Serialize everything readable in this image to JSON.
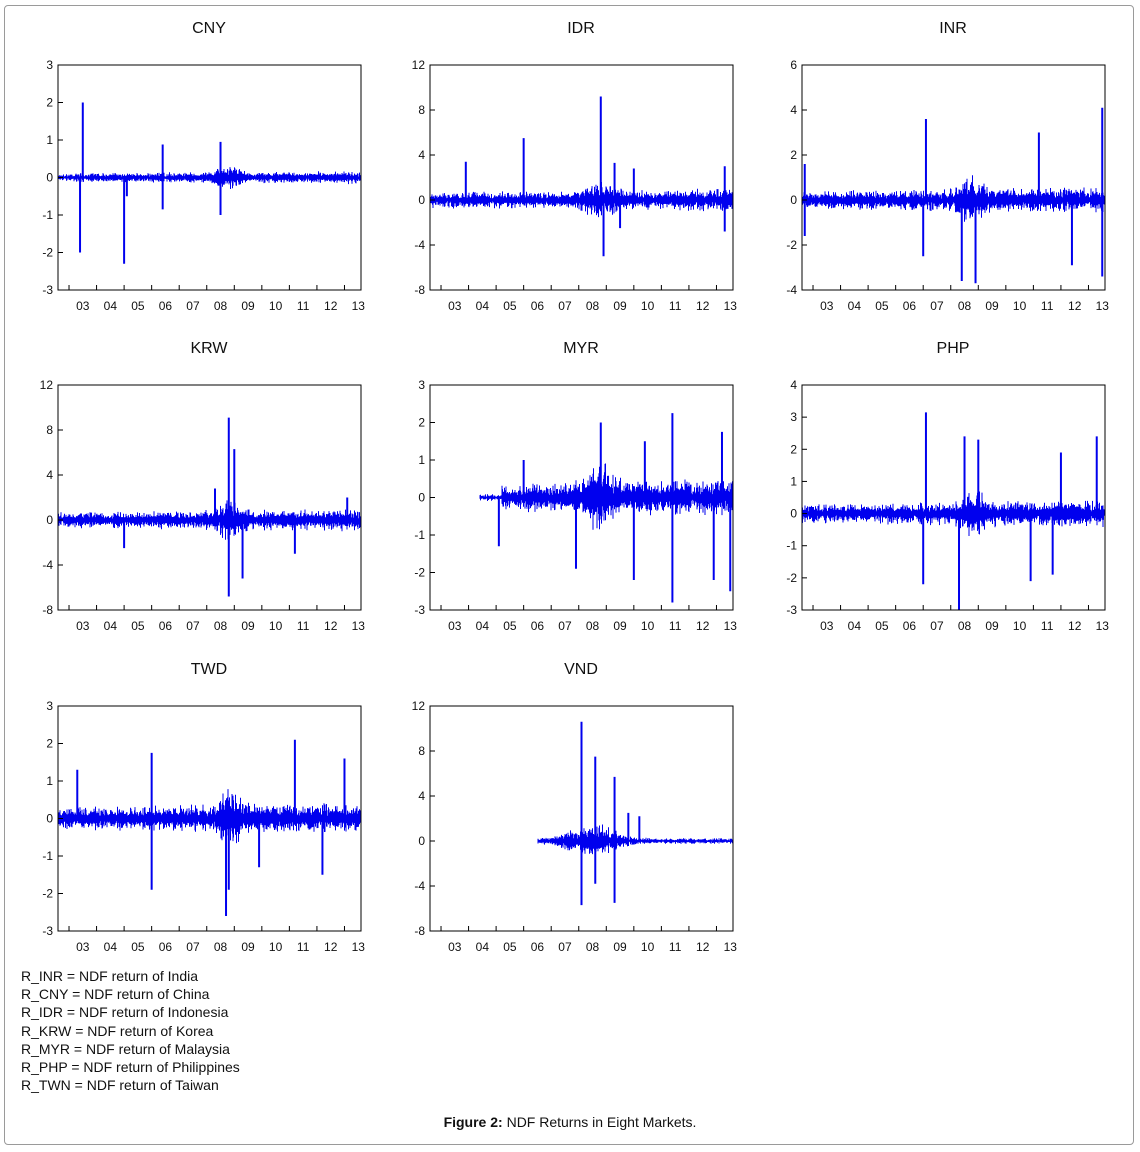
{
  "figure": {
    "caption_label": "Figure 2:",
    "caption_text": " NDF Returns in Eight Markets."
  },
  "legend": [
    "R_INR = NDF return of India",
    "R_CNY = NDF return of China",
    "R_IDR = NDF return of Indonesia",
    "R_KRW = NDF return of Korea",
    "R_MYR = NDF return of Malaysia",
    "R_PHP = NDF return of Philippines",
    "R_TWN = NDF return of Taiwan"
  ],
  "colors": {
    "series": "#0000ee",
    "axis": "#000000",
    "frame": "#9a9a9a"
  },
  "chart_data": [
    {
      "type": "line",
      "title": "CNY",
      "x_ticks": [
        "03",
        "04",
        "05",
        "06",
        "07",
        "08",
        "09",
        "10",
        "11",
        "12",
        "13"
      ],
      "x_range": [
        2002.6,
        2013.6
      ],
      "x_start": 2002.6,
      "yticks": [
        -3,
        -2,
        -1,
        0,
        1,
        2,
        3
      ],
      "ylim": [
        -3,
        3
      ],
      "amplitude": 0.1,
      "spikes": [
        [
          2003.5,
          2.0
        ],
        [
          2003.4,
          -2.0
        ],
        [
          2005.0,
          -2.3
        ],
        [
          2006.4,
          0.88
        ],
        [
          2006.4,
          -0.85
        ],
        [
          2008.5,
          0.95
        ],
        [
          2008.5,
          -1.0
        ],
        [
          2005.1,
          -0.5
        ]
      ]
    },
    {
      "type": "line",
      "title": "IDR",
      "x_ticks": [
        "03",
        "04",
        "05",
        "06",
        "07",
        "08",
        "09",
        "10",
        "11",
        "12",
        "13"
      ],
      "x_range": [
        2002.6,
        2013.6
      ],
      "x_start": 2002.6,
      "yticks": [
        -8,
        -4,
        0,
        4,
        8,
        12
      ],
      "ylim": [
        -8,
        12
      ],
      "amplitude": 0.6,
      "spikes": [
        [
          2008.8,
          9.2
        ],
        [
          2008.9,
          -5.0
        ],
        [
          2006.0,
          5.5
        ],
        [
          2003.9,
          3.4
        ],
        [
          2009.3,
          3.3
        ],
        [
          2010.0,
          2.8
        ],
        [
          2013.3,
          3.0
        ],
        [
          2013.3,
          -2.8
        ],
        [
          2009.5,
          -2.5
        ]
      ]
    },
    {
      "type": "line",
      "title": "INR",
      "x_ticks": [
        "03",
        "04",
        "05",
        "06",
        "07",
        "08",
        "09",
        "10",
        "11",
        "12",
        "13"
      ],
      "x_range": [
        2002.6,
        2013.6
      ],
      "x_start": 2002.6,
      "yticks": [
        -4,
        -2,
        0,
        2,
        4,
        6
      ],
      "ylim": [
        -4,
        6
      ],
      "amplitude": 0.35,
      "spikes": [
        [
          2007.1,
          3.6
        ],
        [
          2007.0,
          -2.5
        ],
        [
          2008.4,
          -3.6
        ],
        [
          2008.9,
          -3.7
        ],
        [
          2013.5,
          4.1
        ],
        [
          2013.5,
          -3.4
        ],
        [
          2011.2,
          3.0
        ],
        [
          2012.4,
          -2.9
        ],
        [
          2002.7,
          1.6
        ],
        [
          2002.7,
          -1.6
        ]
      ]
    },
    {
      "type": "line",
      "title": "KRW",
      "x_ticks": [
        "03",
        "04",
        "05",
        "06",
        "07",
        "08",
        "09",
        "10",
        "11",
        "12",
        "13"
      ],
      "x_range": [
        2002.6,
        2013.6
      ],
      "x_start": 2002.6,
      "yticks": [
        -8,
        -4,
        0,
        4,
        8,
        12
      ],
      "ylim": [
        -8,
        12
      ],
      "amplitude": 0.6,
      "spikes": [
        [
          2008.8,
          9.1
        ],
        [
          2008.8,
          -6.8
        ],
        [
          2009.0,
          6.3
        ],
        [
          2009.3,
          -5.2
        ],
        [
          2008.3,
          2.8
        ],
        [
          2011.2,
          -3.0
        ],
        [
          2013.1,
          2.0
        ],
        [
          2005.0,
          -2.5
        ]
      ]
    },
    {
      "type": "line",
      "title": "MYR",
      "x_ticks": [
        "03",
        "04",
        "05",
        "06",
        "07",
        "08",
        "09",
        "10",
        "11",
        "12",
        "13"
      ],
      "x_range": [
        2002.6,
        2013.6
      ],
      "x_start": 2004.4,
      "yticks": [
        -3,
        -2,
        -1,
        0,
        1,
        2,
        3
      ],
      "ylim": [
        -3,
        3
      ],
      "amplitude": 0.3,
      "spikes": [
        [
          2011.4,
          2.25
        ],
        [
          2011.4,
          -2.8
        ],
        [
          2010.0,
          -2.2
        ],
        [
          2013.5,
          -2.5
        ],
        [
          2012.9,
          -2.2
        ],
        [
          2007.9,
          -1.9
        ],
        [
          2013.2,
          1.75
        ],
        [
          2008.8,
          2.0
        ],
        [
          2006.0,
          1.0
        ],
        [
          2005.1,
          -1.3
        ],
        [
          2010.4,
          1.5
        ]
      ]
    },
    {
      "type": "line",
      "title": "PHP",
      "x_ticks": [
        "03",
        "04",
        "05",
        "06",
        "07",
        "08",
        "09",
        "10",
        "11",
        "12",
        "13"
      ],
      "x_range": [
        2002.6,
        2013.6
      ],
      "x_start": 2002.6,
      "yticks": [
        -3,
        -2,
        -1,
        0,
        1,
        2,
        3,
        4
      ],
      "ylim": [
        -3,
        4
      ],
      "amplitude": 0.25,
      "spikes": [
        [
          2007.1,
          3.15
        ],
        [
          2008.3,
          -3.0
        ],
        [
          2008.5,
          2.4
        ],
        [
          2009.0,
          2.3
        ],
        [
          2013.3,
          2.4
        ],
        [
          2010.9,
          -2.1
        ],
        [
          2007.0,
          -2.2
        ],
        [
          2011.7,
          -1.9
        ],
        [
          2012.0,
          1.9
        ]
      ]
    },
    {
      "type": "line",
      "title": "TWD",
      "x_ticks": [
        "03",
        "04",
        "05",
        "06",
        "07",
        "08",
        "09",
        "10",
        "11",
        "12",
        "13"
      ],
      "x_range": [
        2002.6,
        2013.6
      ],
      "x_start": 2002.6,
      "yticks": [
        -3,
        -2,
        -1,
        0,
        1,
        2,
        3
      ],
      "ylim": [
        -3,
        3
      ],
      "amplitude": 0.25,
      "spikes": [
        [
          2008.7,
          -2.6
        ],
        [
          2011.2,
          2.1
        ],
        [
          2006.0,
          1.75
        ],
        [
          2013.0,
          1.6
        ],
        [
          2008.8,
          -1.9
        ],
        [
          2006.0,
          -1.9
        ],
        [
          2003.3,
          1.3
        ],
        [
          2009.9,
          -1.3
        ],
        [
          2012.2,
          -1.5
        ]
      ]
    },
    {
      "type": "line",
      "title": "VND",
      "x_ticks": [
        "03",
        "04",
        "05",
        "06",
        "07",
        "08",
        "09",
        "10",
        "11",
        "12",
        "13"
      ],
      "x_range": [
        2002.6,
        2013.6
      ],
      "x_start": 2006.5,
      "yticks": [
        -8,
        -4,
        0,
        4,
        8,
        12
      ],
      "ylim": [
        -8,
        12
      ],
      "amplitude": 0.4,
      "spikes": [
        [
          2008.1,
          10.6
        ],
        [
          2008.1,
          -5.7
        ],
        [
          2008.6,
          7.5
        ],
        [
          2008.6,
          -3.8
        ],
        [
          2009.3,
          5.7
        ],
        [
          2009.3,
          -5.5
        ],
        [
          2010.2,
          2.2
        ],
        [
          2009.8,
          2.5
        ]
      ]
    }
  ]
}
